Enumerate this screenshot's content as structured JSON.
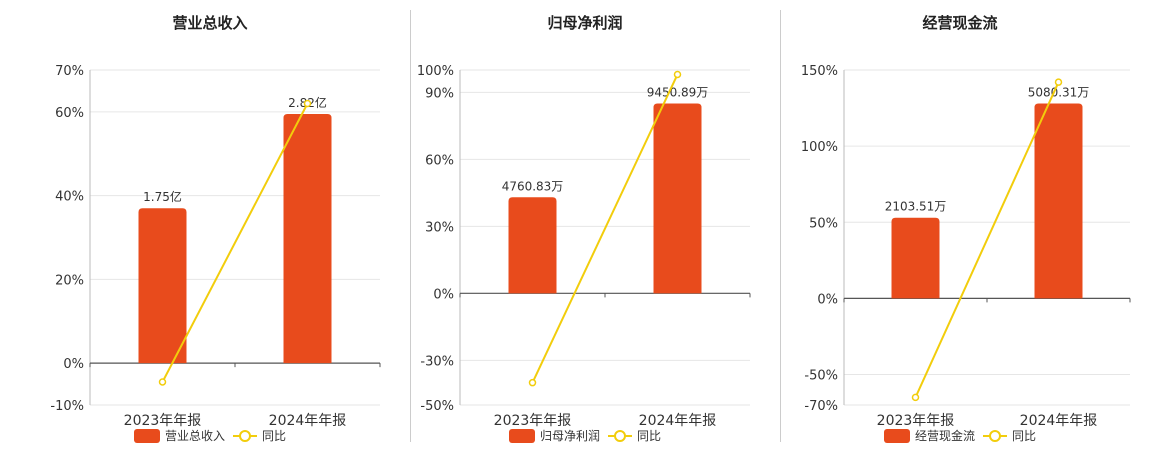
{
  "colors": {
    "bar": "#e84b1c",
    "line": "#f2cd0c",
    "grid": "#e6e6e6",
    "axis": "#555555",
    "text": "#333333"
  },
  "chart_data": [
    {
      "type": "bar",
      "title": "营业总收入",
      "categories": [
        "2023年年报",
        "2024年年报"
      ],
      "series": [
        {
          "name": "营业总收入",
          "type": "bar",
          "values": [
            37,
            59.5
          ],
          "labels": [
            "1.75亿",
            "2.82亿"
          ]
        },
        {
          "name": "同比",
          "type": "line",
          "values": [
            -4.5,
            62
          ]
        }
      ],
      "yticks": [
        -10,
        0,
        20,
        40,
        60,
        70
      ],
      "ytick_labels": [
        "-10%",
        "0%",
        "20%",
        "40%",
        "60%",
        "70%"
      ],
      "ylim": [
        -10,
        70
      ]
    },
    {
      "type": "bar",
      "title": "归母净利润",
      "categories": [
        "2023年年报",
        "2024年年报"
      ],
      "series": [
        {
          "name": "归母净利润",
          "type": "bar",
          "values": [
            43,
            85
          ],
          "labels": [
            "4760.83万",
            "9450.89万"
          ]
        },
        {
          "name": "同比",
          "type": "line",
          "values": [
            -40,
            98
          ]
        }
      ],
      "yticks": [
        -50,
        -30,
        0,
        30,
        60,
        90,
        100
      ],
      "ytick_labels": [
        "-50%",
        "-30%",
        "0%",
        "30%",
        "60%",
        "90%",
        "100%"
      ],
      "ylim": [
        -50,
        100
      ]
    },
    {
      "type": "bar",
      "title": "经营现金流",
      "categories": [
        "2023年年报",
        "2024年年报"
      ],
      "series": [
        {
          "name": "经营现金流",
          "type": "bar",
          "values": [
            53,
            128
          ],
          "labels": [
            "2103.51万",
            "5080.31万"
          ]
        },
        {
          "name": "同比",
          "type": "line",
          "values": [
            -65,
            142
          ]
        }
      ],
      "yticks": [
        -70,
        -50,
        0,
        50,
        100,
        150
      ],
      "ytick_labels": [
        "-70%",
        "-50%",
        "0%",
        "50%",
        "100%",
        "150%"
      ],
      "ylim": [
        -70,
        150
      ]
    }
  ]
}
